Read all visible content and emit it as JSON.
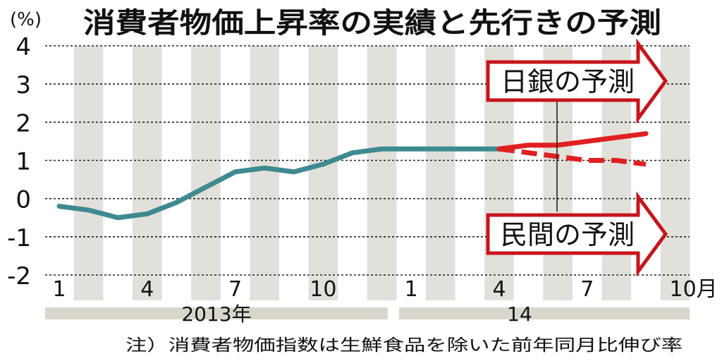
{
  "chart_data": {
    "type": "line",
    "title": "消費者物価上昇率の実績と先行きの予測",
    "ylabel": "(%)",
    "ylim": [
      -2,
      4
    ],
    "y_ticks": [
      "4",
      "3",
      "2",
      "1",
      "0",
      "-1",
      "-2"
    ],
    "x_tick_labels": [
      "1",
      "4",
      "7",
      "10",
      "1",
      "4",
      "7",
      "10月"
    ],
    "year_labels": [
      "2013年",
      "14"
    ],
    "series": [
      {
        "values": [
          -0.2,
          -0.3,
          -0.5,
          -0.4,
          -0.1,
          0.3,
          0.7,
          0.8,
          0.7,
          0.9,
          1.2,
          1.3,
          1.3,
          1.3,
          1.3,
          1.3
        ]
      },
      {
        "name": "日銀の予測",
        "values": [
          1.3,
          1.4,
          1.4,
          1.5,
          1.6,
          1.7
        ]
      },
      {
        "name": "民間の予測",
        "values": [
          1.3,
          1.2,
          1.1,
          1.0,
          1.0,
          0.9
        ]
      }
    ],
    "grid": true,
    "note": "注）消費者物価指数は生鮮食品を除いた前年同月比伸び率",
    "colors": {
      "actual": "#3f8a91",
      "forecast": "#e02020",
      "stripe": "#e2e0da",
      "year_bar": "#d9d6cc"
    }
  }
}
